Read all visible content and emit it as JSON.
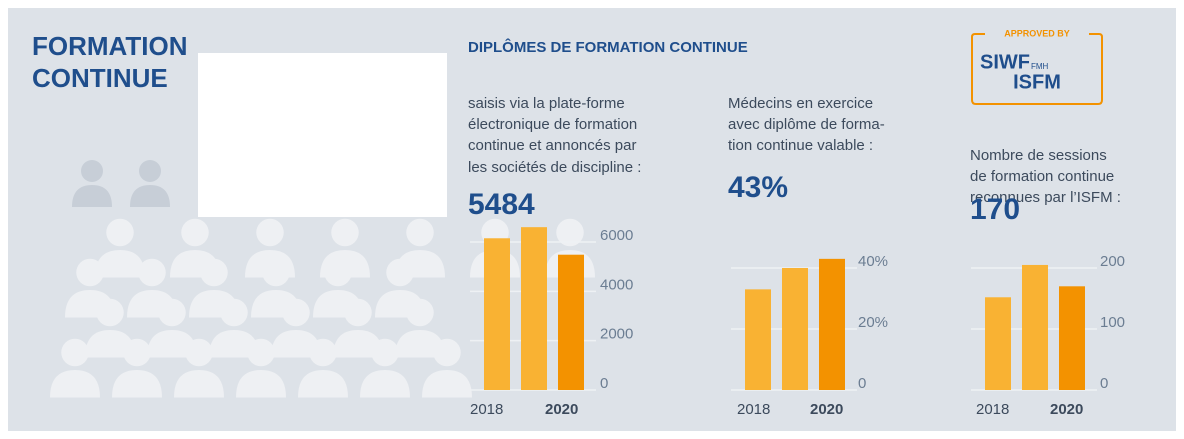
{
  "header": {
    "title_lines": [
      "FORMATION",
      "CONTINUE"
    ]
  },
  "section_title": "DIPLÔMES DE FORMATION CONTINUE",
  "badge": {
    "top": "APPROVED BY",
    "line1": "SIWF",
    "line1_suffix": "FMH",
    "line2": "ISFM"
  },
  "chart_data": [
    {
      "type": "bar",
      "description": [
        "saisis via la plate-forme",
        "électronique de formation",
        "continue et annoncés par",
        "les sociétés de discipline :"
      ],
      "headline": "5484",
      "categories": [
        "2018",
        null,
        "2020"
      ],
      "values": [
        6150,
        6600,
        5484
      ],
      "colors": [
        "#f9b233",
        "#f9b233",
        "#f39200"
      ],
      "ylim": [
        0,
        7000
      ],
      "yticks": [
        0,
        2000,
        4000,
        6000
      ],
      "grid": true
    },
    {
      "type": "bar",
      "description": [
        "Médecins en exercice",
        "avec diplôme de forma-",
        "tion continue valable :"
      ],
      "headline": "43%",
      "categories": [
        "2018",
        null,
        "2020"
      ],
      "values": [
        33,
        40,
        43
      ],
      "colors": [
        "#f9b233",
        "#f9b233",
        "#f39200"
      ],
      "ylim": [
        0,
        50
      ],
      "yticks": [
        0,
        {
          "value": 20,
          "label": "20%"
        },
        {
          "value": 40,
          "label": "40%"
        }
      ],
      "grid": true
    },
    {
      "type": "bar",
      "description": [
        "Nombre de sessions",
        "de formation continue",
        "reconnues par l’ISFM :"
      ],
      "headline": "170",
      "categories": [
        "2018",
        null,
        "2020"
      ],
      "values": [
        152,
        205,
        170
      ],
      "colors": [
        "#f9b233",
        "#f9b233",
        "#f39200"
      ],
      "ylim": [
        0,
        250
      ],
      "yticks": [
        0,
        100,
        200
      ],
      "grid": true
    }
  ]
}
